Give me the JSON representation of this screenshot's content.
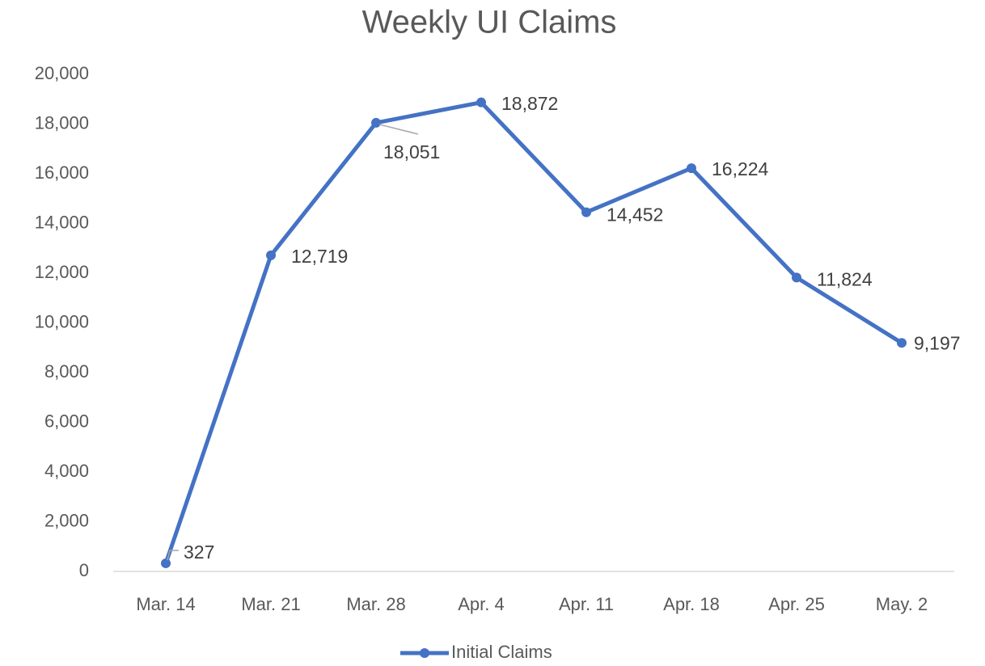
{
  "chart_data": {
    "type": "line",
    "title": "Weekly UI Claims",
    "categories": [
      "Mar. 14",
      "Mar. 21",
      "Mar. 28",
      "Apr. 4",
      "Apr. 11",
      "Apr. 18",
      "Apr. 25",
      "May. 2"
    ],
    "series": [
      {
        "name": "Initial Claims",
        "color": "#4472c4",
        "values": [
          327,
          12719,
          18051,
          18872,
          14452,
          16224,
          11824,
          9197
        ],
        "value_labels": [
          "327",
          "12,719",
          "18,051",
          "18,872",
          "14,452",
          "16,224",
          "11,824",
          "9,197"
        ]
      }
    ],
    "ylim": [
      0,
      20000
    ],
    "yticks": [
      0,
      {
        "value": 2000,
        "label": "2,000"
      },
      {
        "value": 4000,
        "label": "4,000"
      },
      {
        "value": 6000,
        "label": "6,000"
      },
      {
        "value": 8000,
        "label": "8,000"
      },
      {
        "value": 10000,
        "label": "10,000"
      },
      {
        "value": 12000,
        "label": "12,000"
      },
      {
        "value": 14000,
        "label": "14,000"
      },
      {
        "value": 16000,
        "label": "16,000"
      },
      {
        "value": 18000,
        "label": "18,000"
      },
      {
        "value": 20000,
        "label": "20,000"
      }
    ],
    "grid": false,
    "legend": "bottom"
  }
}
